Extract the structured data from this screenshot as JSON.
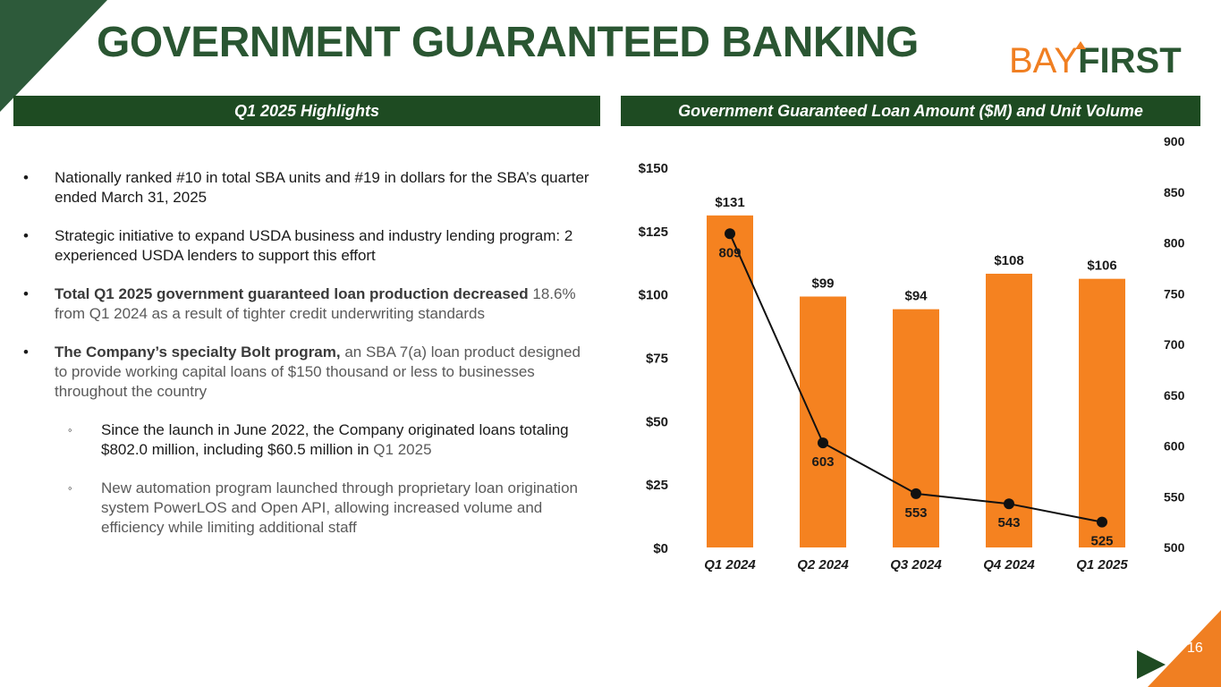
{
  "page": {
    "title": "GOVERNMENT GUARANTEED BANKING",
    "logo": {
      "part1": "BAY",
      "part2": "FIRST"
    },
    "page_number": "16",
    "colors": {
      "green": "#1e4b22",
      "orange": "#f58220",
      "title_green": "#2a5632"
    }
  },
  "highlights": {
    "header": "Q1 2025 Highlights",
    "bullets": [
      {
        "marker": "•",
        "text": "Nationally ranked #10 in total SBA units and #19 in dollars for the SBA’s quarter ended March 31, 2025"
      },
      {
        "marker": "•",
        "text": "Strategic initiative to expand USDA business and industry lending program: 2 experienced USDA lenders to support this effort"
      },
      {
        "marker": "•",
        "bold": "Total Q1 2025 government guaranteed loan production decreased",
        "text": " 18.6% from Q1 2024 as a result of tighter credit underwriting standards"
      },
      {
        "marker": "•",
        "bold": "The Company’s specialty Bolt program,",
        "text": " an SBA 7(a) loan product designed to provide working capital loans of $150 thousand or less to businesses throughout the country"
      }
    ],
    "sub_bullets": [
      {
        "marker": "◦",
        "text": "Since the launch in June 2022, the Company originated loans totaling $802.0 million, including $60.5 million in",
        "grey": " Q1 2025"
      },
      {
        "marker": "◦",
        "text": "New automation program launched through proprietary loan origination system PowerLOS and Open API, allowing increased volume and efficiency while limiting additional staff"
      }
    ]
  },
  "chart_data": {
    "header": "Government Guaranteed Loan Amount ($M) and Unit Volume",
    "type": "bar",
    "categories": [
      "Q1 2024",
      "Q2 2024",
      "Q3 2024",
      "Q4 2024",
      "Q1 2025"
    ],
    "series": [
      {
        "name": "Loan Amount ($M)",
        "type": "bar",
        "axis": "left",
        "values": [
          131,
          99,
          94,
          108,
          106
        ],
        "labels": [
          "$131",
          "$99",
          "$94",
          "$108",
          "$106"
        ],
        "color": "#f58220"
      },
      {
        "name": "Unit Volume",
        "type": "line",
        "axis": "right",
        "values": [
          809,
          603,
          553,
          543,
          525
        ],
        "labels": [
          "809",
          "603",
          "553",
          "543",
          "525"
        ],
        "color": "#111111"
      }
    ],
    "y_left": {
      "min": 0,
      "max": 150,
      "ticks": [
        0,
        25,
        50,
        75,
        100,
        125,
        150
      ],
      "tick_labels": [
        "$0",
        "$25",
        "$50",
        "$75",
        "$100",
        "$125",
        "$150"
      ]
    },
    "y_right": {
      "min": 500,
      "max": 900,
      "ticks": [
        500,
        550,
        600,
        650,
        700,
        750,
        800,
        850,
        900
      ],
      "tick_labels": [
        "500",
        "550",
        "600",
        "650",
        "700",
        "750",
        "800",
        "850",
        "900"
      ]
    },
    "grid": false
  }
}
